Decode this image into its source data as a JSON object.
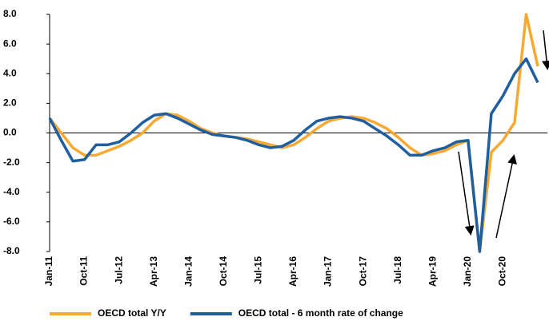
{
  "chart_data": {
    "type": "line",
    "categories": [
      "Jan-11",
      null,
      null,
      "Oct-11",
      null,
      null,
      "Jul-12",
      null,
      null,
      "Apr-13",
      null,
      null,
      "Jan-14",
      null,
      null,
      "Oct-14",
      null,
      null,
      "Jul-15",
      null,
      null,
      "Apr-16",
      null,
      null,
      "Jan-17",
      null,
      null,
      "Oct-17",
      null,
      null,
      "Jul-18",
      null,
      null,
      "Apr-19",
      null,
      null,
      "Jan-20",
      null,
      null,
      "Oct-20",
      null,
      null,
      null
    ],
    "series": [
      {
        "name": "OECD total Y/Y",
        "color": "#f7a932",
        "values": [
          1.0,
          0.0,
          -1.0,
          -1.5,
          -1.5,
          -1.2,
          -0.9,
          -0.5,
          0.0,
          0.8,
          1.3,
          1.2,
          0.8,
          0.3,
          0.0,
          -0.2,
          -0.3,
          -0.4,
          -0.6,
          -0.8,
          -1.0,
          -0.8,
          -0.3,
          0.3,
          0.8,
          1.0,
          1.1,
          1.0,
          0.7,
          0.3,
          -0.3,
          -1.0,
          -1.5,
          -1.4,
          -1.2,
          -0.8,
          -0.5,
          -8.0,
          -1.3,
          -0.5,
          0.7,
          8.0,
          4.5
        ]
      },
      {
        "name": "OECD total - 6 month rate of change",
        "color": "#1f5fa0",
        "values": [
          1.0,
          -0.5,
          -1.9,
          -1.8,
          -0.8,
          -0.8,
          -0.6,
          0.0,
          0.7,
          1.2,
          1.3,
          1.0,
          0.6,
          0.2,
          -0.1,
          -0.2,
          -0.3,
          -0.5,
          -0.8,
          -1.0,
          -0.9,
          -0.5,
          0.2,
          0.8,
          1.0,
          1.1,
          1.0,
          0.8,
          0.3,
          -0.2,
          -0.8,
          -1.5,
          -1.5,
          -1.2,
          -1.0,
          -0.6,
          -0.5,
          -8.0,
          1.3,
          2.5,
          4.0,
          5.0,
          3.4
        ]
      }
    ],
    "ylim": [
      -8,
      8
    ],
    "yticks": [
      {
        "value": -8,
        "label": "-8.0"
      },
      {
        "value": -6,
        "label": "-6.0"
      },
      {
        "value": -4,
        "label": "-4.0"
      },
      {
        "value": -2,
        "label": "-2.0"
      },
      {
        "value": 0,
        "label": "0.0"
      },
      {
        "value": 2,
        "label": "2.0"
      },
      {
        "value": 4,
        "label": "4.0"
      },
      {
        "value": 6,
        "label": "6.0"
      },
      {
        "value": 8,
        "label": "8.0"
      }
    ],
    "grid": false
  }
}
